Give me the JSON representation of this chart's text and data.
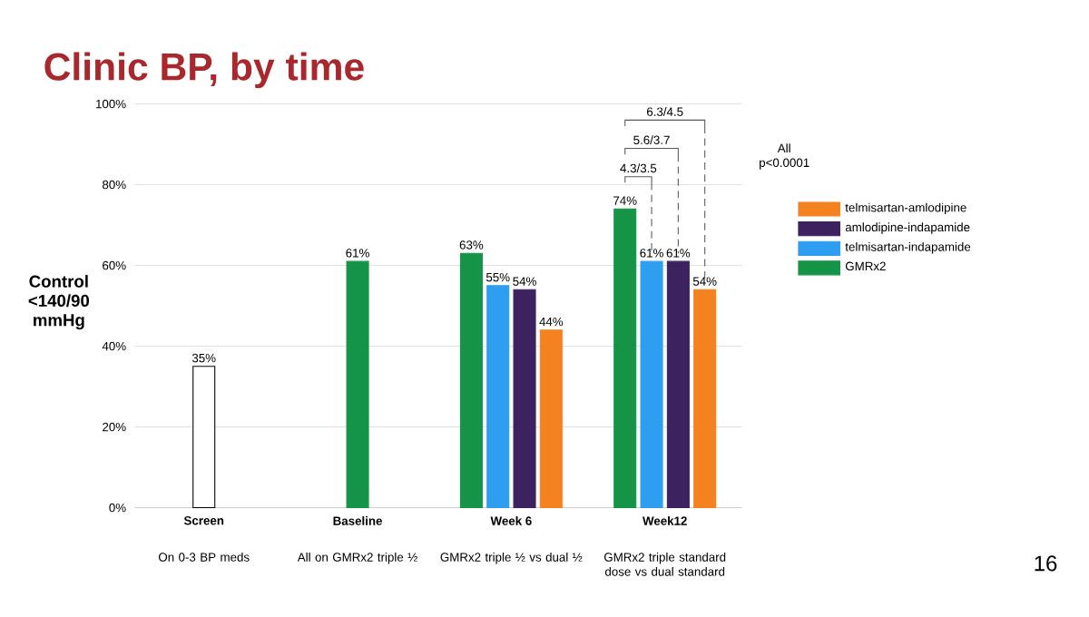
{
  "chart_data": {
    "type": "bar",
    "title": "Clinic BP, by time",
    "ylabel": "Control <140/90 mmHg",
    "categories": [
      "Screen",
      "Baseline",
      "Week 6",
      "Week12"
    ],
    "series": [
      {
        "color": "#ffffff",
        "values": [
          35,
          null,
          null,
          null
        ],
        "value_labels": [
          "35%",
          null,
          null,
          null
        ]
      },
      {
        "name": "GMRx2",
        "color": "#159447",
        "values": [
          null,
          61,
          63,
          74
        ],
        "value_labels": [
          null,
          "61%",
          "63%",
          "74%"
        ]
      },
      {
        "name": "telmisartan-indapamide",
        "color": "#2e9ef0",
        "values": [
          null,
          null,
          55,
          61
        ],
        "value_labels": [
          null,
          null,
          "55%",
          "61%"
        ]
      },
      {
        "name": "amlodipine-indapamide",
        "color": "#3d2260",
        "values": [
          null,
          null,
          54,
          61
        ],
        "value_labels": [
          null,
          null,
          "54%",
          "61%"
        ]
      },
      {
        "name": "telmisartan-amlodipine",
        "color": "#f58220",
        "values": [
          null,
          null,
          44,
          54
        ],
        "value_labels": [
          null,
          null,
          "44%",
          "54%"
        ]
      }
    ],
    "ylim": [
      0,
      100
    ],
    "yticks": [
      {
        "value": 0,
        "label": "0%"
      },
      {
        "value": 20,
        "label": "20%"
      },
      {
        "value": 40,
        "label": "40%"
      },
      {
        "value": 60,
        "label": "60%"
      },
      {
        "value": 80,
        "label": "80%"
      },
      {
        "value": 100,
        "label": "100%"
      }
    ],
    "grid": "y",
    "legend": "right",
    "annotations": [
      "On 0-3 BP meds",
      "All on GMRx2 triple ½",
      "GMRx2 triple ½ vs dual ½",
      "GMRx2 triple standard dose vs dual standard",
      "4.3/3.5",
      "5.6/3.7",
      "6.3/4.5",
      "All p<0.0001",
      "16"
    ]
  }
}
